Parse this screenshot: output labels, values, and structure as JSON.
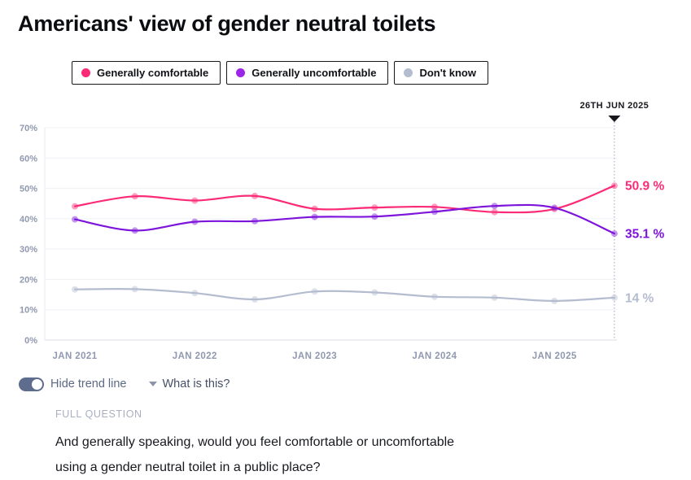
{
  "page": {
    "title": "Americans' view of gender neutral toilets"
  },
  "legend": {
    "items": [
      {
        "label": "Generally comfortable",
        "dot": "#fb2b77"
      },
      {
        "label": "Generally uncomfortable",
        "dot": "#9b26e8"
      },
      {
        "label": "Don't know",
        "dot": "#b4bccf"
      }
    ]
  },
  "chart_data": {
    "type": "line",
    "title": "Americans' view of gender neutral toilets",
    "x": [
      "Jan 2021",
      "Jul 2021",
      "Jan 2022",
      "Jul 2022",
      "Jan 2023",
      "Jul 2023",
      "Jan 2024",
      "Jul 2024",
      "Jan 2025",
      "26 Jun 2025"
    ],
    "x_months": [
      0,
      6,
      12,
      18,
      24,
      30,
      36,
      42,
      48,
      54
    ],
    "series": [
      {
        "name": "Generally comfortable",
        "color": "#fb2b77",
        "values": [
          44.1,
          47.4,
          46.0,
          47.5,
          43.3,
          43.7,
          43.9,
          42.2,
          43.2,
          50.9
        ],
        "end_label": "50.9 %",
        "end_label_color": "#fb2b77"
      },
      {
        "name": "Generally uncomfortable",
        "color": "#7d14dc",
        "values": [
          39.8,
          36.1,
          39.0,
          39.2,
          40.6,
          40.7,
          42.3,
          44.2,
          43.6,
          35.1
        ],
        "end_label": "35.1 %",
        "end_label_color": "#7d14dc"
      },
      {
        "name": "Don't know",
        "color": "#b4bccf",
        "values": [
          16.7,
          16.8,
          15.5,
          13.4,
          16.0,
          15.7,
          14.3,
          14.0,
          12.9,
          14.0
        ],
        "end_label": "14 %",
        "end_label_color": "#b4bccf"
      }
    ],
    "y_ticks": [
      "0%",
      "10%",
      "20%",
      "30%",
      "40%",
      "50%",
      "60%",
      "70%"
    ],
    "x_ticks": [
      "JAN 2021",
      "JAN 2022",
      "JAN 2023",
      "JAN 2024",
      "JAN 2025"
    ],
    "ylim": [
      0,
      70
    ],
    "grid": "horizontal",
    "legend_position": "top",
    "annotation": "26TH JUN 2025",
    "axis_label_color": "#9099b0",
    "grid_color": "#eef0f5",
    "axis_line_color": "#d9dde7",
    "dashed_line_color": "#9aa2b5",
    "annotation_color": "#16181d"
  },
  "controls": {
    "toggle_label": "Hide trend line",
    "toggle_state": "on",
    "help_label": "What is this?"
  },
  "question": {
    "heading": "FULL QUESTION",
    "text": "And generally speaking, would you feel comfortable or uncomfortable using a gender neutral toilet in a public place?"
  }
}
